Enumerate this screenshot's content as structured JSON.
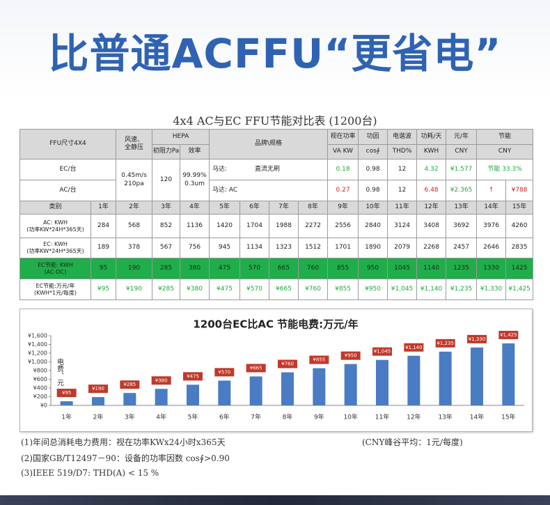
{
  "header": {
    "title": "比普通ACFFU“更省电”"
  },
  "table": {
    "title": "4x4 AC与EC FFU节能对比表 (1200台)",
    "header_row1": [
      "FFU尺寸4X4",
      "风速、\n全静压",
      "HEPA",
      "品牌\\规格",
      "视在功率",
      "功因",
      "电谐波",
      "功耗/天",
      "元/年",
      "节能"
    ],
    "header_row2": [
      "初阻力Pa",
      "效率",
      "VA KW",
      "cos∮",
      "THD%",
      "KWH",
      "CNY",
      "CNY"
    ],
    "ec_row": {
      "label": "EC/台",
      "wind": "0.45m/s\n210pa",
      "resistance": 120,
      "efficiency": "99.99%\n0.3um",
      "motor": "马达:",
      "motor_type": "直流无刷",
      "power": 0.18,
      "pf": 0.98,
      "thd": 12,
      "daily": 4.32,
      "yearly": "¥1.577",
      "saving": "节能 33.3%"
    },
    "ac_row": {
      "label": "AC/台",
      "motor": "马达: AC",
      "power": 0.27,
      "pf": 0.98,
      "thd": 12,
      "daily": 6.48,
      "yearly": "¥2.365",
      "arrow": "↑",
      "saving": "¥788"
    },
    "years_header": [
      "类别",
      "1年",
      "2年",
      "3年",
      "4年",
      "5年",
      "6年",
      "7年",
      "8年",
      "9年",
      "10年",
      "11年",
      "12年",
      "13年",
      "14年",
      "15年"
    ],
    "rows": [
      {
        "label": "AC: KWH\n(功率KW*24H*365天)",
        "values": [
          284,
          568,
          852,
          1136,
          1420,
          1704,
          1988,
          2272,
          2556,
          2840,
          3124,
          3408,
          3692,
          3976,
          4260
        ]
      },
      {
        "label": "EC: KWH\n(功率KW*24H*365天)",
        "values": [
          189,
          378,
          567,
          756,
          945,
          1134,
          1323,
          1512,
          1701,
          1890,
          2079,
          2268,
          2457,
          2646,
          2835
        ]
      },
      {
        "label": "EC节能: KWH\n(AC-DC)",
        "values": [
          95,
          190,
          285,
          380,
          475,
          570,
          665,
          760,
          855,
          950,
          1045,
          1140,
          1235,
          1330,
          1425
        ]
      },
      {
        "label": "EC节能:万元/年\n(KWH*1元/每度)",
        "values": [
          "¥95",
          "¥190",
          "¥285",
          "¥380",
          "¥475",
          "¥570",
          "¥665",
          "¥760",
          "¥855",
          "¥950",
          "¥1,045",
          "¥1,140",
          "¥1,235",
          "¥1,330",
          "¥1,425"
        ]
      }
    ]
  },
  "chart_data": {
    "type": "bar",
    "title": "1200台EC比AC 节能电费:万元/年",
    "y_label": "电费、元",
    "categories": [
      "1年",
      "2年",
      "3年",
      "4年",
      "5年",
      "6年",
      "7年",
      "8年",
      "9年",
      "10年",
      "11年",
      "12年",
      "13年",
      "14年",
      "15年"
    ],
    "values": [
      95,
      190,
      285,
      380,
      475,
      570,
      665,
      760,
      855,
      950,
      1045,
      1140,
      1235,
      1330,
      1425
    ],
    "value_labels": [
      "¥95",
      "¥190",
      "¥285",
      "¥380",
      "¥475",
      "¥570",
      "¥665",
      "¥760",
      "¥855",
      "¥950",
      "¥1,045",
      "¥1,140",
      "¥1,235",
      "¥1,330",
      "¥1,425"
    ],
    "color": "#4a7cc4",
    "label_color": "#c0392b",
    "ylim": [
      0,
      1600
    ],
    "yticks": [
      {
        "value": 0,
        "label": "¥0"
      },
      {
        "value": 200,
        "label": "¥200"
      },
      {
        "value": 400,
        "label": "¥400"
      },
      {
        "value": 600,
        "label": "¥600"
      },
      {
        "value": 800,
        "label": "¥800"
      },
      {
        "value": 1000,
        "label": "¥1,000"
      },
      {
        "value": 1200,
        "label": "¥1,200"
      },
      {
        "value": 1400,
        "label": "¥1,400"
      },
      {
        "value": 1600,
        "label": "¥1,600"
      }
    ],
    "grid": false
  },
  "notes": [
    "(1)年间总消耗电力费用：视在功率KWx24小时x365天",
    "(CNY峰谷平均：1元/每度)",
    "(2)国家GB/T12497－90：设备的功率因数 cos∮>0.90",
    "(3)IEEE 519/D7: THD(A) < 15 %"
  ]
}
